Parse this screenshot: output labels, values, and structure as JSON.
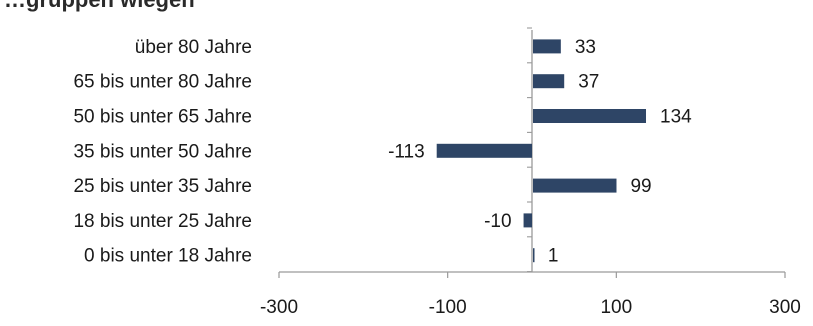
{
  "title_fragment": "…gruppen wiegen",
  "chart_data": {
    "type": "bar",
    "orientation": "horizontal",
    "categories": [
      "über 80 Jahre",
      "65 bis unter 80 Jahre",
      "50 bis unter 65 Jahre",
      "35 bis unter 50 Jahre",
      "25 bis unter 35 Jahre",
      "18 bis unter 25 Jahre",
      "0 bis unter 18 Jahre"
    ],
    "values": [
      33,
      37,
      134,
      -113,
      99,
      -10,
      1
    ],
    "data_labels": [
      "33",
      "37",
      "134",
      "-113",
      "99",
      "-10",
      "1"
    ],
    "xlim": [
      -300,
      300
    ],
    "xticks": [
      -300,
      -100,
      100,
      300
    ],
    "xtick_labels": [
      "-300",
      "-100",
      "100",
      "300"
    ],
    "grid": false,
    "legend": "none",
    "bar_color": "#2e4566",
    "axis_color": "#9a9a9a"
  }
}
